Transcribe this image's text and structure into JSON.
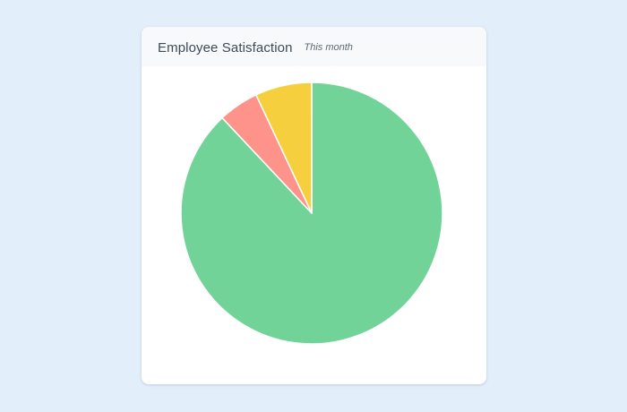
{
  "card": {
    "title": "Employee Satisfaction",
    "subtitle": "This month"
  },
  "chart_data": {
    "type": "pie",
    "title": "Employee Satisfaction",
    "subtitle": "This month",
    "start_angle_deg": 0,
    "direction": "clockwise",
    "slices": [
      {
        "value": 88,
        "color": "#72d399"
      },
      {
        "value": 5,
        "color": "#fe938c"
      },
      {
        "value": 7,
        "color": "#f6cf3f"
      }
    ],
    "legend": "none",
    "data_labels": false
  }
}
